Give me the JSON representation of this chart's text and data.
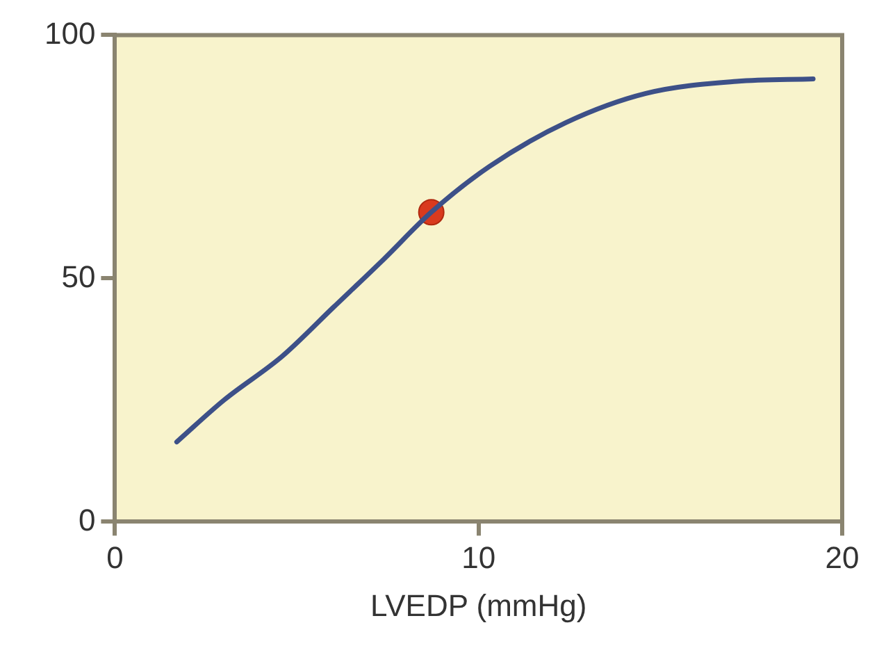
{
  "chart_data": {
    "type": "line",
    "xlabel": "LVEDP (mmHg)",
    "xlim": [
      0,
      20
    ],
    "xticks": [
      0,
      10,
      20
    ],
    "ylim": [
      0,
      100
    ],
    "yticks": [
      0,
      50,
      100
    ],
    "grid": false,
    "legend": false,
    "marker": "none",
    "series": [
      {
        "color": "#3d5088",
        "x": [
          1.7,
          3,
          4.6,
          6,
          7.4,
          8.7,
          10.3,
          12.4,
          14.6,
          17.1,
          19.2
        ],
        "values": [
          16.4,
          25,
          34,
          44,
          54,
          63.6,
          73,
          82,
          88,
          90.5,
          91
        ]
      },
      {
        "type": "scatter",
        "marker": "circle",
        "color": "#d93a1e",
        "x": [
          8.7
        ],
        "values": [
          63.6
        ]
      }
    ]
  }
}
